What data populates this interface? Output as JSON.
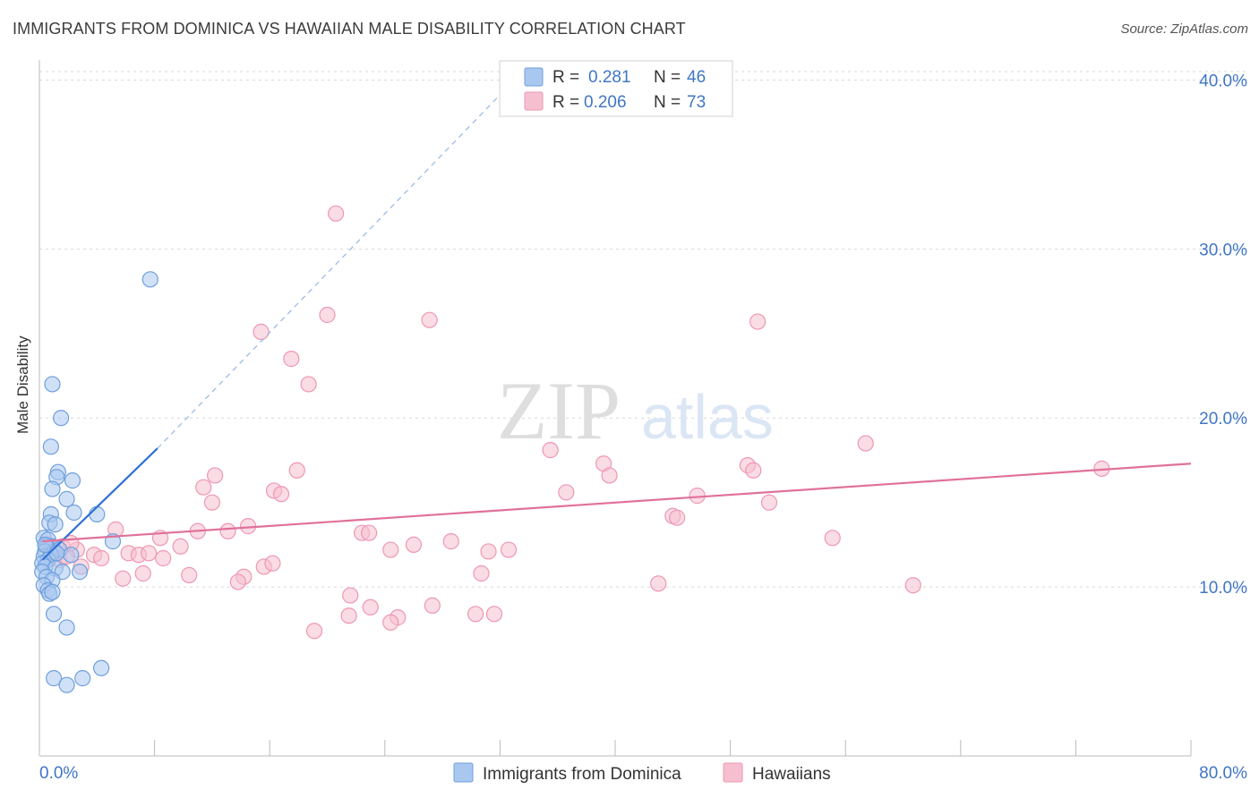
{
  "header": {
    "title": "IMMIGRANTS FROM DOMINICA VS HAWAIIAN MALE DISABILITY CORRELATION CHART",
    "source": "Source: ZipAtlas.com"
  },
  "watermark": {
    "zip": "ZIP",
    "atlas": "atlas"
  },
  "colors": {
    "blue_fill": "#a9c8f0",
    "blue_stroke": "#6f9fdc",
    "blue_line": "#2f6fd6",
    "pink_fill": "#f6bfd0",
    "pink_stroke": "#ee97b3",
    "pink_line": "#e0719a",
    "axis_text": "#3f76c6",
    "grid": "#d9d9d9"
  },
  "chart_data": {
    "type": "scatter",
    "title": "IMMIGRANTS FROM DOMINICA VS HAWAIIAN MALE DISABILITY CORRELATION CHART",
    "xlabel": "",
    "ylabel": "Male Disability",
    "xlim": [
      0,
      80
    ],
    "ylim": [
      0,
      40.5
    ],
    "x_tick_labels": [
      "0.0%",
      "80.0%"
    ],
    "y_ticks": [
      10,
      20,
      30,
      40
    ],
    "y_tick_labels": [
      "10.0%",
      "20.0%",
      "30.0%",
      "40.0%"
    ],
    "legend_top": [
      {
        "r_label": "R =",
        "r_value": "0.281",
        "n_label": "N =",
        "n_value": "46"
      },
      {
        "r_label": "R =",
        "r_value": "0.206",
        "n_label": "N =",
        "n_value": "73"
      }
    ],
    "series": [
      {
        "name": "Immigrants from Dominica",
        "r": 0.281,
        "n": 46,
        "trend": {
          "x0": 0.2,
          "y0": 11.6,
          "x1": 8.2,
          "y1": 18.2,
          "dash_x1": 33,
          "dash_y1": 40
        },
        "points": [
          [
            7.7,
            28.2
          ],
          [
            0.9,
            22.0
          ],
          [
            1.5,
            20.0
          ],
          [
            0.8,
            18.3
          ],
          [
            1.3,
            16.8
          ],
          [
            1.2,
            16.5
          ],
          [
            2.3,
            16.3
          ],
          [
            0.9,
            15.8
          ],
          [
            1.9,
            15.2
          ],
          [
            2.4,
            14.4
          ],
          [
            4.0,
            14.3
          ],
          [
            0.8,
            14.3
          ],
          [
            0.7,
            13.8
          ],
          [
            1.1,
            13.7
          ],
          [
            0.3,
            12.9
          ],
          [
            0.6,
            12.8
          ],
          [
            0.9,
            12.4
          ],
          [
            5.1,
            12.7
          ],
          [
            0.5,
            12.4
          ],
          [
            1.0,
            12.1
          ],
          [
            1.4,
            12.2
          ],
          [
            0.4,
            12.1
          ],
          [
            0.8,
            11.9
          ],
          [
            0.3,
            11.8
          ],
          [
            2.2,
            11.9
          ],
          [
            0.6,
            11.6
          ],
          [
            0.2,
            11.4
          ],
          [
            0.4,
            11.2
          ],
          [
            1.1,
            11.1
          ],
          [
            1.6,
            10.9
          ],
          [
            0.2,
            10.9
          ],
          [
            2.8,
            10.9
          ],
          [
            0.5,
            10.6
          ],
          [
            0.9,
            10.4
          ],
          [
            0.3,
            10.1
          ],
          [
            0.6,
            9.8
          ],
          [
            0.7,
            9.6
          ],
          [
            0.9,
            9.7
          ],
          [
            1.0,
            8.4
          ],
          [
            1.9,
            7.6
          ],
          [
            4.3,
            5.2
          ],
          [
            1.0,
            4.6
          ],
          [
            3.0,
            4.6
          ],
          [
            1.9,
            4.2
          ],
          [
            0.4,
            12.5
          ],
          [
            1.2,
            12.0
          ]
        ]
      },
      {
        "name": "Hawaiians",
        "r": 0.206,
        "n": 73,
        "trend": {
          "x0": 0.2,
          "y0": 12.7,
          "x1": 80,
          "y1": 17.3
        },
        "points": [
          [
            20.6,
            32.1
          ],
          [
            20.0,
            26.1
          ],
          [
            27.1,
            25.8
          ],
          [
            49.9,
            25.7
          ],
          [
            15.4,
            25.1
          ],
          [
            17.5,
            23.5
          ],
          [
            18.7,
            22.0
          ],
          [
            35.5,
            18.1
          ],
          [
            57.4,
            18.5
          ],
          [
            39.2,
            17.3
          ],
          [
            17.9,
            16.9
          ],
          [
            49.2,
            17.2
          ],
          [
            73.8,
            17.0
          ],
          [
            12.2,
            16.6
          ],
          [
            39.6,
            16.6
          ],
          [
            49.6,
            16.9
          ],
          [
            11.4,
            15.9
          ],
          [
            16.3,
            15.7
          ],
          [
            36.6,
            15.6
          ],
          [
            16.8,
            15.5
          ],
          [
            45.7,
            15.4
          ],
          [
            12.0,
            15.0
          ],
          [
            50.7,
            15.0
          ],
          [
            44.0,
            14.2
          ],
          [
            44.3,
            14.1
          ],
          [
            5.3,
            13.4
          ],
          [
            11.0,
            13.3
          ],
          [
            13.1,
            13.3
          ],
          [
            14.5,
            13.6
          ],
          [
            22.4,
            13.2
          ],
          [
            22.9,
            13.2
          ],
          [
            8.4,
            12.9
          ],
          [
            9.8,
            12.4
          ],
          [
            2.6,
            12.2
          ],
          [
            24.4,
            12.2
          ],
          [
            26.0,
            12.5
          ],
          [
            28.6,
            12.7
          ],
          [
            31.2,
            12.1
          ],
          [
            32.6,
            12.2
          ],
          [
            55.1,
            12.9
          ],
          [
            6.2,
            12.0
          ],
          [
            6.9,
            11.9
          ],
          [
            7.6,
            12.0
          ],
          [
            3.8,
            11.9
          ],
          [
            4.3,
            11.7
          ],
          [
            8.6,
            11.7
          ],
          [
            1.4,
            11.6
          ],
          [
            1.9,
            11.8
          ],
          [
            2.9,
            11.2
          ],
          [
            15.6,
            11.2
          ],
          [
            16.2,
            11.4
          ],
          [
            7.2,
            10.8
          ],
          [
            10.4,
            10.7
          ],
          [
            5.8,
            10.5
          ],
          [
            14.2,
            10.6
          ],
          [
            13.8,
            10.3
          ],
          [
            30.7,
            10.8
          ],
          [
            43.0,
            10.2
          ],
          [
            60.7,
            10.1
          ],
          [
            21.6,
            9.5
          ],
          [
            23.0,
            8.8
          ],
          [
            27.3,
            8.9
          ],
          [
            21.5,
            8.3
          ],
          [
            24.9,
            8.2
          ],
          [
            24.4,
            7.9
          ],
          [
            30.3,
            8.4
          ],
          [
            31.6,
            8.4
          ],
          [
            19.1,
            7.4
          ],
          [
            0.9,
            12.0
          ],
          [
            1.6,
            12.4
          ],
          [
            0.6,
            12.5
          ],
          [
            0.8,
            12.3
          ],
          [
            2.2,
            12.6
          ]
        ]
      }
    ]
  }
}
